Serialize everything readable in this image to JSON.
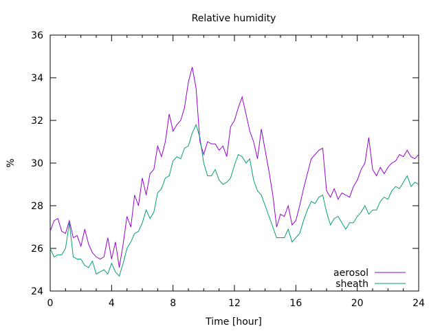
{
  "chart_data": {
    "type": "line",
    "title": "Relative humidity",
    "xlabel": "Time [hour]",
    "ylabel": "%",
    "xlim": [
      0,
      24
    ],
    "ylim": [
      24,
      36
    ],
    "xticks": [
      "0",
      "4",
      "8",
      "12",
      "16",
      "20",
      "24"
    ],
    "xtick_values": [
      0,
      4,
      8,
      12,
      16,
      20,
      24
    ],
    "yticks": [
      "24",
      "26",
      "28",
      "30",
      "32",
      "34",
      "36"
    ],
    "ytick_values": [
      24,
      26,
      28,
      30,
      32,
      34,
      36
    ],
    "grid": false,
    "legend_position": "bottom-right",
    "x_step": 0.25,
    "series": [
      {
        "name": "aerosol",
        "color": "#9400d3",
        "values": [
          26.8,
          27.3,
          27.4,
          26.8,
          26.7,
          27.3,
          26.5,
          26.6,
          26.1,
          26.9,
          26.2,
          25.8,
          25.6,
          25.5,
          25.6,
          26.5,
          25.5,
          26.3,
          25.1,
          26.2,
          27.5,
          27.0,
          28.5,
          28.0,
          29.3,
          28.5,
          29.5,
          29.7,
          30.8,
          30.3,
          31.0,
          32.3,
          31.5,
          31.8,
          32.0,
          32.6,
          33.8,
          34.5,
          33.5,
          31.0,
          30.4,
          31.0,
          30.9,
          30.9,
          30.6,
          30.8,
          30.3,
          31.7,
          32.0,
          32.6,
          33.1,
          32.3,
          31.5,
          31.0,
          30.2,
          31.6,
          30.6,
          29.6,
          28.5,
          27.0,
          27.6,
          27.5,
          28.0,
          27.1,
          27.3,
          28.0,
          28.8,
          29.5,
          30.2,
          30.4,
          30.6,
          30.7,
          28.7,
          28.4,
          28.8,
          28.3,
          28.6,
          28.5,
          28.4,
          28.9,
          29.2,
          29.7,
          30.0,
          31.2,
          29.7,
          29.4,
          29.8,
          29.5,
          29.8,
          30.0,
          30.1,
          30.4,
          30.3,
          30.6,
          30.3,
          30.2,
          30.4
        ]
      },
      {
        "name": "sheath",
        "color": "#009e73",
        "values": [
          26.0,
          25.6,
          25.7,
          25.7,
          26.0,
          27.2,
          25.6,
          25.5,
          25.5,
          25.2,
          25.1,
          25.4,
          24.8,
          24.9,
          25.0,
          24.8,
          25.3,
          24.9,
          24.7,
          25.3,
          26.0,
          26.3,
          26.7,
          26.8,
          27.2,
          27.8,
          27.4,
          27.7,
          28.6,
          28.8,
          29.3,
          29.4,
          30.1,
          30.3,
          30.2,
          30.7,
          30.8,
          31.4,
          31.8,
          31.2,
          30.0,
          29.4,
          29.4,
          29.7,
          29.2,
          29.0,
          29.1,
          29.3,
          29.9,
          30.4,
          30.3,
          30.0,
          30.2,
          29.2,
          28.7,
          28.5,
          28.0,
          27.5,
          27.0,
          26.5,
          26.5,
          26.5,
          26.9,
          26.3,
          26.5,
          26.7,
          27.3,
          27.8,
          28.2,
          28.1,
          28.4,
          28.5,
          27.7,
          27.1,
          27.4,
          27.5,
          27.2,
          26.9,
          27.2,
          27.2,
          27.5,
          27.7,
          28.0,
          27.6,
          27.8,
          27.8,
          28.2,
          28.4,
          28.3,
          28.7,
          28.9,
          28.8,
          29.1,
          29.4,
          28.9,
          29.1,
          29.0
        ]
      }
    ]
  }
}
